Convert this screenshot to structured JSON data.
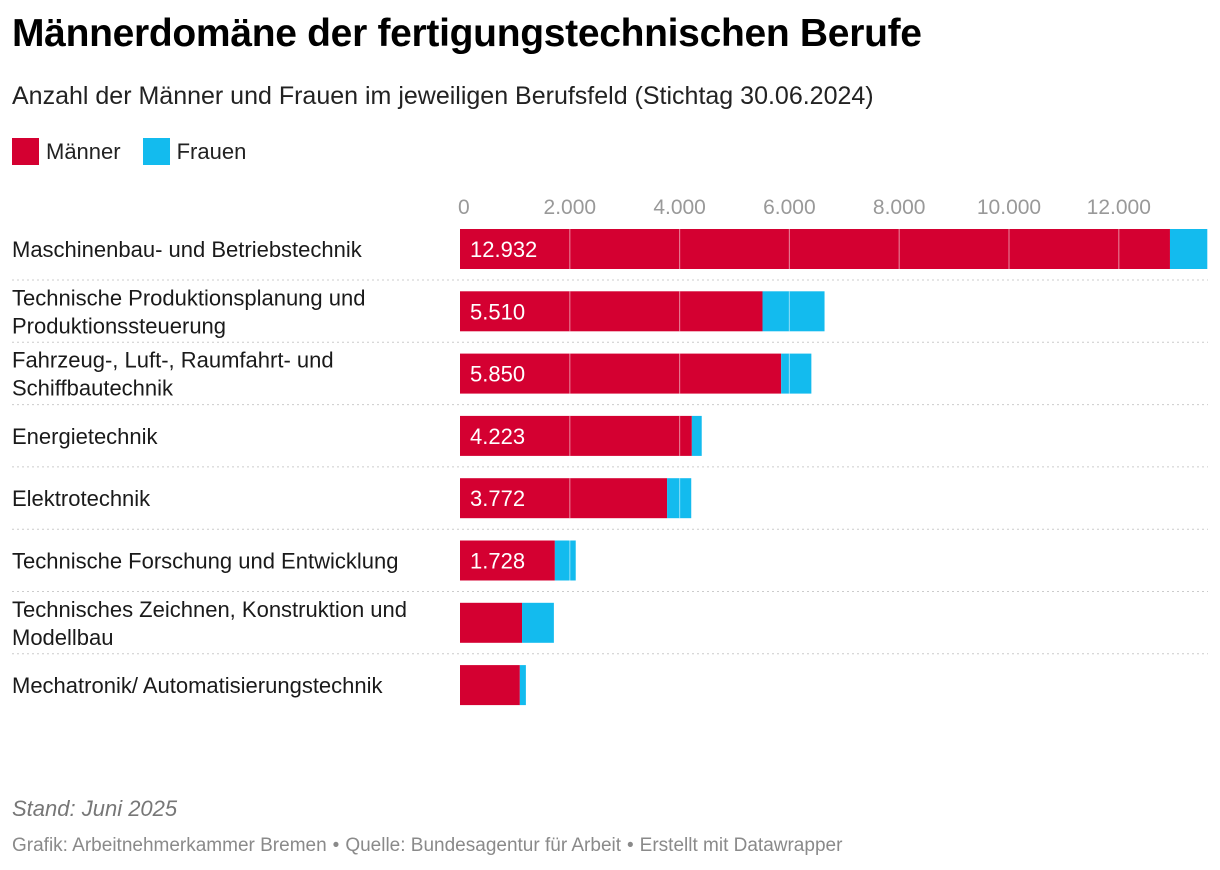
{
  "header": {
    "title": "Männerdomäne der fertigungstechnischen Berufe",
    "subtitle": "Anzahl der Männer und Frauen im jeweiligen Berufsfeld (Stichtag 30.06.2024)"
  },
  "legend": {
    "men_label": "Männer",
    "women_label": "Frauen"
  },
  "colors": {
    "men": "#d40031",
    "women": "#13bbee",
    "tick": "#999999",
    "divider": "#cccccc",
    "label": "#1a1a1a"
  },
  "chart_data": {
    "type": "bar",
    "orientation": "horizontal",
    "stacked": true,
    "title": "Männerdomäne der fertigungstechnischen Berufe",
    "subtitle": "Anzahl der Männer und Frauen im jeweiligen Berufsfeld (Stichtag 30.06.2024)",
    "xlim": [
      0,
      13600
    ],
    "ticks": [
      0,
      2000,
      4000,
      6000,
      8000,
      10000,
      12000
    ],
    "tick_labels": [
      "0",
      "2.000",
      "4.000",
      "6.000",
      "8.000",
      "10.000",
      "12.000"
    ],
    "categories": [
      "Maschinenbau- und Betriebstechnik",
      "Technische Produktionsplanung und Produktionssteuerung",
      "Fahrzeug-, Luft-, Raumfahrt- und Schiffbautechnik",
      "Energietechnik",
      "Elektrotechnik",
      "Technische Forschung und Entwicklung",
      "Technisches Zeichnen, Konstruktion und Modellbau",
      "Mechatronik/ Automatisierungstechnik"
    ],
    "category_lines": [
      [
        "Maschinenbau- und Betriebstechnik"
      ],
      [
        "Technische Produktionsplanung und",
        "Produktionssteuerung"
      ],
      [
        "Fahrzeug-, Luft-, Raumfahrt- und",
        "Schiffbautechnik"
      ],
      [
        "Energietechnik"
      ],
      [
        "Elektrotechnik"
      ],
      [
        "Technische Forschung und Entwicklung"
      ],
      [
        "Technisches Zeichnen, Konstruktion und",
        "Modellbau"
      ],
      [
        "Mechatronik/ Automatisierungstechnik"
      ]
    ],
    "series": [
      {
        "name": "Männer",
        "values": [
          12932,
          5510,
          5850,
          4223,
          3772,
          1728,
          1130,
          1090
        ],
        "labels": [
          "12.932",
          "5.510",
          "5.850",
          "4.223",
          "3.772",
          "1.728",
          "",
          ""
        ]
      },
      {
        "name": "Frauen",
        "values": [
          680,
          1130,
          550,
          180,
          440,
          380,
          580,
          110
        ]
      }
    ]
  },
  "footer": {
    "note": "Stand: Juni 2025",
    "credit": "Grafik: Arbeitnehmerkammer Bremen",
    "source": "Quelle: Bundesagentur für Arbeit",
    "tool": "Erstellt mit Datawrapper"
  }
}
